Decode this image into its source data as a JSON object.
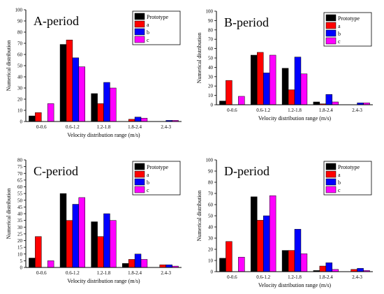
{
  "chart_data": [
    {
      "type": "bar",
      "title": "A-period",
      "categories": [
        "0-0.6",
        "0.6-1.2",
        "1.2-1.8",
        "1.8-2.4",
        "2.4-3"
      ],
      "xlabel": "Velocity distribution range (m/s)",
      "ylabel": "Numerical distribution",
      "ylim": [
        0,
        100
      ],
      "yticks": [
        0,
        10,
        20,
        30,
        40,
        50,
        60,
        70,
        80,
        90,
        100
      ],
      "grid": false,
      "legend_position": "top-right",
      "series": [
        {
          "name": "Prototype",
          "color": "#000000",
          "values": [
            5,
            69,
            25,
            0,
            0
          ]
        },
        {
          "name": "a",
          "color": "#ff0000",
          "values": [
            8,
            73,
            16,
            2,
            0
          ]
        },
        {
          "name": "b",
          "color": "#0000ff",
          "values": [
            0,
            57,
            35,
            4,
            1
          ]
        },
        {
          "name": "c",
          "color": "#ff00ff",
          "values": [
            16,
            49,
            30,
            3,
            1
          ]
        }
      ]
    },
    {
      "type": "bar",
      "title": "B-period",
      "categories": [
        "0-0.6",
        "0.6-1.2",
        "1.2-1.8",
        "1.8-2.4",
        "2.4-3"
      ],
      "xlabel": "Velocity distribution range (m/s)",
      "ylabel": "Numerical distribution",
      "ylim": [
        0,
        100
      ],
      "yticks": [
        0,
        10,
        20,
        30,
        40,
        50,
        60,
        70,
        80,
        90,
        100
      ],
      "grid": false,
      "legend_position": "top-right",
      "series": [
        {
          "name": "Prototype",
          "color": "#000000",
          "values": [
            4,
            53,
            39,
            3,
            0
          ]
        },
        {
          "name": "a",
          "color": "#ff0000",
          "values": [
            26,
            56,
            16,
            1,
            0
          ]
        },
        {
          "name": "b",
          "color": "#0000ff",
          "values": [
            0,
            34,
            51,
            11,
            2
          ]
        },
        {
          "name": "c",
          "color": "#ff00ff",
          "values": [
            9,
            53,
            33,
            3,
            2
          ]
        }
      ]
    },
    {
      "type": "bar",
      "title": "C-period",
      "categories": [
        "0-0.6",
        "0.6-1.2",
        "1.2-1.8",
        "1.8-2.4",
        "2.4-3"
      ],
      "xlabel": "Velocity distribution range (m/s)",
      "ylabel": "Numerical distribution",
      "ylim": [
        0,
        80
      ],
      "yticks": [
        0,
        5,
        10,
        15,
        20,
        25,
        30,
        35,
        40,
        45,
        50,
        55,
        60,
        65,
        70,
        75,
        80
      ],
      "grid": false,
      "legend_position": "top-right",
      "series": [
        {
          "name": "Prototype",
          "color": "#000000",
          "values": [
            7,
            55,
            34,
            3,
            0
          ]
        },
        {
          "name": "a",
          "color": "#ff0000",
          "values": [
            23,
            35,
            23,
            6,
            2
          ]
        },
        {
          "name": "b",
          "color": "#0000ff",
          "values": [
            0,
            47,
            40,
            10,
            2
          ]
        },
        {
          "name": "c",
          "color": "#ff00ff",
          "values": [
            5,
            52,
            35,
            6,
            1
          ]
        }
      ]
    },
    {
      "type": "bar",
      "title": "D-period",
      "categories": [
        "0-0.6",
        "0.6-1.2",
        "1.2-1.8",
        "1.8-2.4",
        "2.4-3"
      ],
      "xlabel": "Velocity distribution range (m/s)",
      "ylabel": "Numerical distribution",
      "ylim": [
        0,
        100
      ],
      "yticks": [
        0,
        10,
        20,
        30,
        40,
        50,
        60,
        70,
        80,
        90,
        100
      ],
      "grid": false,
      "legend_position": "top-right",
      "series": [
        {
          "name": "Prototype",
          "color": "#000000",
          "values": [
            12,
            67,
            19,
            1,
            0
          ]
        },
        {
          "name": "a",
          "color": "#ff0000",
          "values": [
            27,
            46,
            19,
            5,
            2
          ]
        },
        {
          "name": "b",
          "color": "#0000ff",
          "values": [
            0,
            50,
            38,
            8,
            3
          ]
        },
        {
          "name": "c",
          "color": "#ff00ff",
          "values": [
            13,
            68,
            16,
            2,
            1
          ]
        }
      ]
    }
  ]
}
